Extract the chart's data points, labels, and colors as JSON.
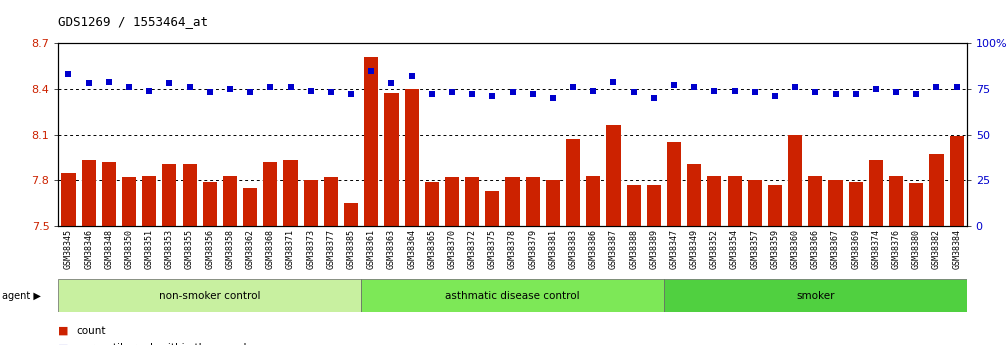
{
  "title": "GDS1269 / 1553464_at",
  "samples": [
    "GSM38345",
    "GSM38346",
    "GSM38348",
    "GSM38350",
    "GSM38351",
    "GSM38353",
    "GSM38355",
    "GSM38356",
    "GSM38358",
    "GSM38362",
    "GSM38368",
    "GSM38371",
    "GSM38373",
    "GSM38377",
    "GSM38385",
    "GSM38361",
    "GSM38363",
    "GSM38364",
    "GSM38365",
    "GSM38370",
    "GSM38372",
    "GSM38375",
    "GSM38378",
    "GSM38379",
    "GSM38381",
    "GSM38383",
    "GSM38386",
    "GSM38387",
    "GSM38388",
    "GSM38389",
    "GSM38347",
    "GSM38349",
    "GSM38352",
    "GSM38354",
    "GSM38357",
    "GSM38359",
    "GSM38360",
    "GSM38366",
    "GSM38367",
    "GSM38369",
    "GSM38374",
    "GSM38376",
    "GSM38380",
    "GSM38382",
    "GSM38384"
  ],
  "red_values": [
    7.85,
    7.93,
    7.92,
    7.82,
    7.83,
    7.91,
    7.91,
    7.79,
    7.83,
    7.75,
    7.92,
    7.93,
    7.8,
    7.82,
    7.65,
    8.61,
    8.37,
    8.4,
    7.79,
    7.82,
    7.82,
    7.73,
    7.82,
    7.82,
    7.8,
    8.07,
    7.83,
    8.16,
    7.77,
    7.77,
    8.05,
    7.91,
    7.83,
    7.83,
    7.8,
    7.77,
    8.1,
    7.83,
    7.8,
    7.79,
    7.93,
    7.83,
    7.78,
    7.97,
    8.09
  ],
  "blue_values": [
    83,
    78,
    79,
    76,
    74,
    78,
    76,
    73,
    75,
    73,
    76,
    76,
    74,
    73,
    72,
    85,
    78,
    82,
    72,
    73,
    72,
    71,
    73,
    72,
    70,
    76,
    74,
    79,
    73,
    70,
    77,
    76,
    74,
    74,
    73,
    71,
    76,
    73,
    72,
    72,
    75,
    73,
    72,
    76,
    76
  ],
  "groups": [
    {
      "label": "non-smoker control",
      "start": 0,
      "end": 15,
      "color": "#c8f0a0"
    },
    {
      "label": "asthmatic disease control",
      "start": 15,
      "end": 30,
      "color": "#7de857"
    },
    {
      "label": "smoker",
      "start": 30,
      "end": 45,
      "color": "#50d040"
    }
  ],
  "ylim_left": [
    7.5,
    8.7
  ],
  "ylim_right": [
    0,
    100
  ],
  "yticks_left": [
    7.5,
    7.8,
    8.1,
    8.4,
    8.7
  ],
  "yticks_right": [
    0,
    25,
    50,
    75,
    100
  ],
  "bar_color": "#cc2200",
  "dot_color": "#0000cc",
  "bg_color": "#ffffff",
  "plot_bg_color": "#ffffff",
  "tick_label_color_left": "#cc2200",
  "tick_label_color_right": "#0000cc"
}
